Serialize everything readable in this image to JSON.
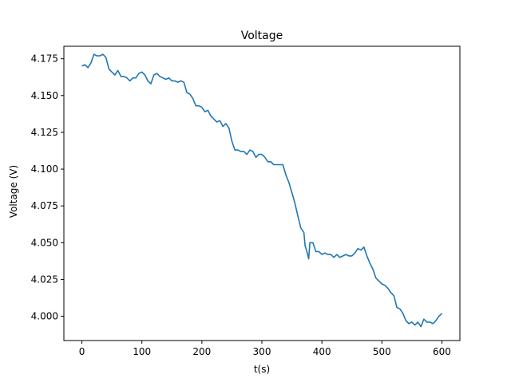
{
  "chart_data": {
    "type": "line",
    "title": "Voltage",
    "xlabel": "t(s)",
    "ylabel": "Voltage (V)",
    "xlim": [
      -30,
      630
    ],
    "ylim": [
      3.9835,
      4.1835
    ],
    "xticks": [
      0,
      100,
      200,
      300,
      400,
      500,
      600
    ],
    "yticks": [
      4.0,
      4.025,
      4.05,
      4.075,
      4.1,
      4.125,
      4.15,
      4.175
    ],
    "grid": false,
    "legend": "none",
    "series": [
      {
        "color": "#1f77b4",
        "x": [
          0,
          5,
          10,
          15,
          20,
          25,
          30,
          35,
          40,
          45,
          50,
          55,
          60,
          65,
          70,
          75,
          80,
          85,
          90,
          95,
          100,
          105,
          110,
          115,
          120,
          125,
          130,
          135,
          140,
          145,
          150,
          155,
          160,
          165,
          170,
          175,
          180,
          185,
          190,
          195,
          200,
          205,
          210,
          215,
          220,
          225,
          230,
          235,
          240,
          245,
          250,
          255,
          260,
          265,
          270,
          275,
          280,
          285,
          290,
          295,
          300,
          305,
          310,
          315,
          320,
          325,
          330,
          335,
          340,
          345,
          350,
          355,
          360,
          365,
          370,
          372,
          375,
          378,
          380,
          385,
          390,
          395,
          400,
          405,
          410,
          415,
          420,
          425,
          430,
          435,
          440,
          445,
          450,
          455,
          460,
          465,
          470,
          475,
          480,
          485,
          490,
          495,
          500,
          505,
          510,
          515,
          520,
          525,
          530,
          535,
          540,
          545,
          550,
          555,
          560,
          565,
          570,
          575,
          580,
          585,
          590,
          595,
          600
        ],
        "y": [
          4.17,
          4.171,
          4.169,
          4.172,
          4.178,
          4.177,
          4.177,
          4.178,
          4.176,
          4.168,
          4.166,
          4.164,
          4.167,
          4.163,
          4.163,
          4.162,
          4.16,
          4.162,
          4.162,
          4.165,
          4.166,
          4.164,
          4.16,
          4.158,
          4.164,
          4.165,
          4.163,
          4.162,
          4.161,
          4.162,
          4.16,
          4.16,
          4.159,
          4.16,
          4.159,
          4.152,
          4.151,
          4.148,
          4.143,
          4.143,
          4.142,
          4.139,
          4.14,
          4.136,
          4.134,
          4.132,
          4.133,
          4.129,
          4.131,
          4.128,
          4.119,
          4.113,
          4.113,
          4.112,
          4.112,
          4.11,
          4.113,
          4.112,
          4.108,
          4.11,
          4.11,
          4.108,
          4.105,
          4.105,
          4.103,
          4.103,
          4.103,
          4.103,
          4.096,
          4.091,
          4.084,
          4.077,
          4.068,
          4.06,
          4.057,
          4.048,
          4.044,
          4.039,
          4.05,
          4.05,
          4.044,
          4.044,
          4.042,
          4.043,
          4.042,
          4.042,
          4.04,
          4.042,
          4.04,
          4.041,
          4.042,
          4.041,
          4.041,
          4.043,
          4.046,
          4.045,
          4.047,
          4.041,
          4.036,
          4.032,
          4.026,
          4.024,
          4.022,
          4.021,
          4.019,
          4.016,
          4.014,
          4.006,
          4.005,
          4.002,
          3.997,
          3.995,
          3.996,
          3.994,
          3.996,
          3.993,
          3.998,
          3.996,
          3.996,
          3.995,
          3.997,
          4.0,
          4.002
        ]
      }
    ]
  }
}
